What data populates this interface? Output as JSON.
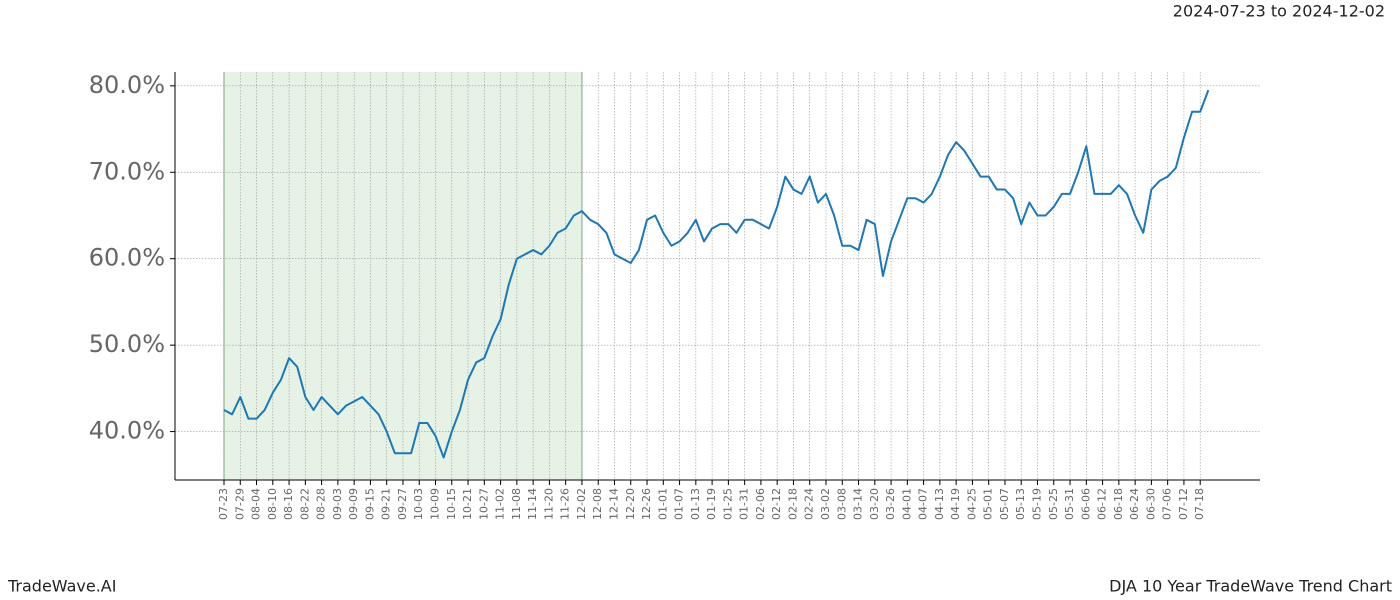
{
  "header": {
    "date_range": "2024-07-23 to 2024-12-02"
  },
  "footer": {
    "brand": "TradeWave.AI",
    "chart_name": "DJA 10 Year TradeWave Trend Chart"
  },
  "chart_data": {
    "type": "line",
    "categories": [
      "07-23",
      null,
      "07-29",
      null,
      "08-04",
      null,
      "08-10",
      null,
      "08-16",
      null,
      "08-22",
      null,
      "08-28",
      null,
      "09-03",
      null,
      "09-09",
      null,
      "09-15",
      null,
      "09-21",
      null,
      "09-27",
      null,
      "10-03",
      null,
      "10-09",
      null,
      "10-15",
      null,
      "10-21",
      null,
      "10-27",
      null,
      "11-02",
      null,
      "11-08",
      null,
      "11-14",
      null,
      "11-20",
      null,
      "11-26",
      null,
      "12-02",
      null,
      "12-08",
      null,
      "12-14",
      null,
      "12-20",
      null,
      "12-26",
      null,
      "01-01",
      null,
      "01-07",
      null,
      "01-13",
      null,
      "01-19",
      null,
      "01-25",
      null,
      "01-31",
      null,
      "02-06",
      null,
      "02-12",
      null,
      "02-18",
      null,
      "02-24",
      null,
      "03-02",
      null,
      "03-08",
      null,
      "03-14",
      null,
      "03-20",
      null,
      "03-26",
      null,
      "04-01",
      null,
      "04-07",
      null,
      "04-13",
      null,
      "04-19",
      null,
      "04-25",
      null,
      "05-01",
      null,
      "05-07",
      null,
      "05-13",
      null,
      "05-19",
      null,
      "05-25",
      null,
      "05-31",
      null,
      "06-06",
      null,
      "06-12",
      null,
      "06-18",
      null,
      "06-24",
      null,
      "06-30",
      null,
      "07-06",
      null,
      "07-12",
      null,
      "07-18",
      null
    ],
    "series": [
      {
        "color": "#1f77b4",
        "values": [
          42.5,
          42,
          44,
          41.5,
          41.5,
          42.5,
          44.5,
          46,
          48.5,
          47.5,
          44,
          42.5,
          44,
          43,
          42,
          43,
          43.5,
          44,
          43,
          42,
          40,
          37.5,
          37.5,
          37.5,
          41,
          41,
          39.5,
          37,
          40,
          42.5,
          46,
          48,
          48.5,
          51,
          53,
          57,
          60,
          60.5,
          61,
          60.5,
          61.5,
          63,
          63.5,
          65,
          65.5,
          64.5,
          64,
          63,
          60.5,
          60,
          59.5,
          61,
          64.5,
          65,
          63,
          61.5,
          62,
          63,
          64.5,
          62,
          63.5,
          64,
          64,
          63,
          64.5,
          64.5,
          64,
          63.5,
          66,
          69.5,
          68,
          67.5,
          69.5,
          66.5,
          67.5,
          65,
          61.5,
          61.5,
          61,
          64.5,
          64,
          58,
          62,
          64.5,
          67,
          67,
          66.5,
          67.5,
          69.5,
          72,
          73.5,
          72.5,
          71,
          69.5,
          69.5,
          68,
          68,
          67,
          64,
          66.5,
          65,
          65,
          66,
          67.5,
          67.5,
          70,
          73,
          67.5,
          67.5,
          67.5,
          68.5,
          67.5,
          65,
          63,
          68,
          69,
          69.5,
          70.5,
          74,
          77,
          77,
          79.5
        ]
      }
    ],
    "highlight": {
      "start": "07-23",
      "end": "12-02",
      "color": "#e6f2e6"
    },
    "ylim": [
      34.4,
      81.6
    ],
    "yticks": [
      {
        "value": 40,
        "label": "40.0%"
      },
      {
        "value": 50,
        "label": "50.0%"
      },
      {
        "value": 60,
        "label": "60.0%"
      },
      {
        "value": 70,
        "label": "70.0%"
      },
      {
        "value": 80,
        "label": "80.0%"
      }
    ],
    "grid": true
  }
}
